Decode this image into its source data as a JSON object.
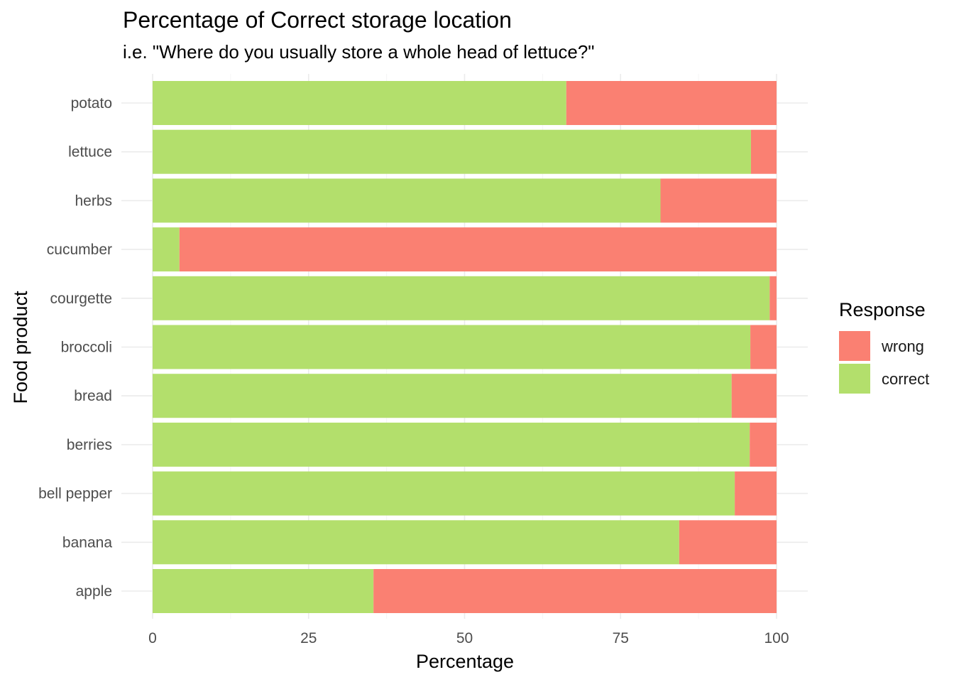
{
  "chart_data": {
    "type": "bar",
    "orientation": "horizontal",
    "stacked": true,
    "title": "Percentage of Correct storage location",
    "subtitle": "i.e. \"Where do you usually store a whole head of lettuce?\"",
    "xlabel": "Percentage",
    "ylabel": "Food product",
    "xlim": [
      0,
      100
    ],
    "xticks": [
      0,
      25,
      50,
      75,
      100
    ],
    "grid": true,
    "legend": {
      "title": "Response",
      "position": "right"
    },
    "categories": [
      "apple",
      "banana",
      "bell pepper",
      "berries",
      "bread",
      "broccoli",
      "courgette",
      "cucumber",
      "herbs",
      "lettuce",
      "potato"
    ],
    "series": [
      {
        "name": "correct",
        "color": "#B3DF6C",
        "values": [
          35.4,
          84.4,
          93.3,
          95.7,
          92.8,
          95.8,
          98.9,
          4.3,
          81.4,
          95.9,
          66.3
        ]
      },
      {
        "name": "wrong",
        "color": "#FA8072",
        "values": [
          64.6,
          15.6,
          6.7,
          4.3,
          7.2,
          4.2,
          1.1,
          95.7,
          18.6,
          4.1,
          33.7
        ]
      }
    ]
  },
  "legend_items": [
    {
      "name": "wrong",
      "color": "#FA8072"
    },
    {
      "name": "correct",
      "color": "#B3DF6C"
    }
  ]
}
